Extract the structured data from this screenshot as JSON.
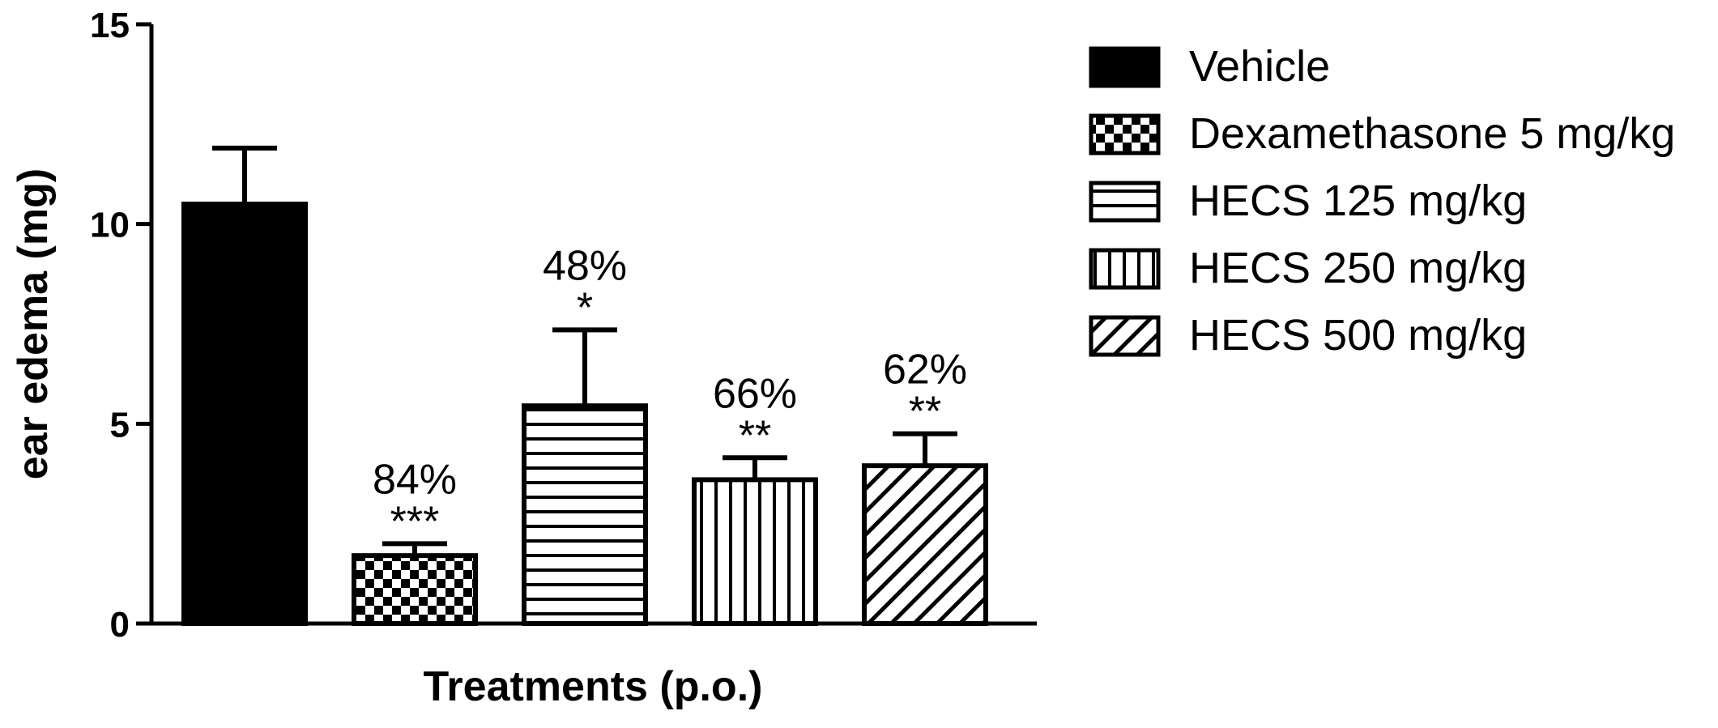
{
  "chart_data": {
    "type": "bar",
    "title": "",
    "xlabel": "Treatments (p.o.)",
    "ylabel": "ear edema (mg)",
    "ylim": [
      0,
      15
    ],
    "yticks": [
      "0",
      "5",
      "10",
      "15"
    ],
    "grid": false,
    "legend_position": "right",
    "categories": [
      "Vehicle",
      "Dexamethasone 5 mg/kg",
      "HECS 125 mg/kg",
      "HECS 250 mg/kg",
      "HECS 500 mg/kg"
    ],
    "values": [
      10.5,
      1.7,
      5.45,
      3.6,
      3.95
    ],
    "errors": [
      1.4,
      0.3,
      1.9,
      0.55,
      0.8
    ],
    "inhibition_labels": [
      "",
      "84%",
      "48%",
      "66%",
      "62%"
    ],
    "significance_labels": [
      "",
      "***",
      "*",
      "**",
      "**"
    ],
    "patterns": [
      "solid",
      "checker",
      "horizontal",
      "vertical",
      "diagonal"
    ]
  }
}
